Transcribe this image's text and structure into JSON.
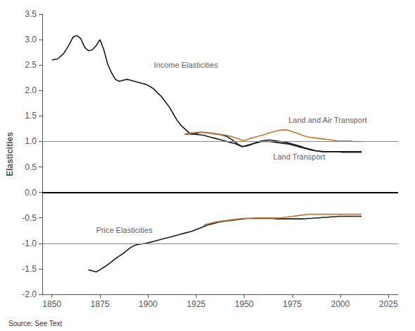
{
  "chart_data": {
    "type": "line",
    "ylabel": "Elasticities",
    "source": "Source: See Text",
    "xlim": [
      1845,
      2030
    ],
    "xticks": [
      1850,
      1875,
      1900,
      1925,
      1950,
      1975,
      2000,
      2025
    ],
    "ylim": [
      -2.0,
      3.5
    ],
    "yticks": [
      {
        "value": -2.0,
        "label": "-2.0"
      },
      -1.5,
      {
        "value": -1.0,
        "label": "-1.0"
      },
      -0.5,
      {
        "value": 0.0,
        "label": "0.0"
      },
      0.5,
      {
        "value": 1.0,
        "label": "1.0"
      },
      1.5,
      {
        "value": 2.0,
        "label": "2.0"
      },
      2.5,
      {
        "value": 3.0,
        "label": "3.0"
      },
      3.5
    ],
    "grid": false,
    "reference_lines": [
      {
        "y": 0.0,
        "color": "#000000"
      },
      {
        "y": 1.0,
        "color": "#888888"
      },
      {
        "y": -1.0,
        "color": "#888888"
      }
    ],
    "annotations": [
      {
        "text": "Income Elasticities",
        "x": 1903,
        "y": 2.42
      },
      {
        "text": "Land and Air Transport",
        "x": 1973,
        "y": 1.34
      },
      {
        "text": "Land Transport",
        "x": 1965,
        "y": 0.62
      },
      {
        "text": "Price Elasticities",
        "x": 1873,
        "y": -0.82
      }
    ],
    "series": [
      {
        "color": "#1a1a1a",
        "x": [
          1850,
          1853,
          1856,
          1859,
          1861,
          1863,
          1865,
          1867,
          1869,
          1871,
          1873,
          1875,
          1877,
          1879,
          1881,
          1883,
          1885,
          1887,
          1889,
          1891,
          1893,
          1895,
          1897,
          1899,
          1901,
          1903,
          1905,
          1907,
          1909,
          1911,
          1913,
          1915,
          1917,
          1919,
          1921,
          1923,
          1925,
          1927,
          1929,
          1931,
          1933,
          1935,
          1937,
          1939,
          1941,
          1943,
          1945,
          1947,
          1949,
          1951,
          1953,
          1955,
          1957,
          1959,
          1961,
          1963,
          1965,
          1967,
          1969,
          1971,
          1973,
          1975,
          1977,
          1979,
          1981,
          1983,
          1985,
          1987,
          1989,
          1991,
          1993,
          1995,
          1997,
          1999,
          2001,
          2003,
          2005,
          2007,
          2009,
          2011
        ],
        "values": [
          2.6,
          2.62,
          2.72,
          2.9,
          3.05,
          3.08,
          3.02,
          2.85,
          2.78,
          2.8,
          2.88,
          3.0,
          2.8,
          2.52,
          2.35,
          2.22,
          2.18,
          2.2,
          2.22,
          2.2,
          2.18,
          2.16,
          2.14,
          2.12,
          2.08,
          2.03,
          1.95,
          1.88,
          1.78,
          1.68,
          1.55,
          1.42,
          1.32,
          1.25,
          1.18,
          1.14,
          1.16,
          1.18,
          1.18,
          1.17,
          1.16,
          1.15,
          1.14,
          1.12,
          1.1,
          1.05,
          1.0,
          0.94,
          0.9,
          0.91,
          0.93,
          0.96,
          0.99,
          1.01,
          1.02,
          1.03,
          1.02,
          1.01,
          1.0,
          0.99,
          0.97,
          0.95,
          0.93,
          0.91,
          0.88,
          0.86,
          0.84,
          0.82,
          0.81,
          0.8,
          0.8,
          0.8,
          0.8,
          0.8,
          0.8,
          0.8,
          0.8,
          0.8,
          0.8,
          0.8
        ]
      },
      {
        "color": "#c87828",
        "x": [
          1919,
          1921,
          1923,
          1925,
          1927,
          1929,
          1931,
          1933,
          1935,
          1937,
          1939,
          1941,
          1943,
          1945,
          1947,
          1949,
          1951,
          1953,
          1955,
          1957,
          1959,
          1961,
          1963,
          1965,
          1967,
          1969,
          1971,
          1973,
          1975,
          1977,
          1979,
          1981,
          1983,
          1985,
          1987,
          1989,
          1991,
          1993,
          1995,
          1997,
          1999,
          2001,
          2003,
          2005,
          2007,
          2009,
          2011
        ],
        "values": [
          1.14,
          1.16,
          1.17,
          1.18,
          1.18,
          1.18,
          1.17,
          1.16,
          1.15,
          1.14,
          1.13,
          1.12,
          1.1,
          1.08,
          1.05,
          1.02,
          1.03,
          1.06,
          1.08,
          1.1,
          1.12,
          1.14,
          1.17,
          1.19,
          1.21,
          1.22,
          1.23,
          1.22,
          1.19,
          1.17,
          1.14,
          1.11,
          1.09,
          1.08,
          1.07,
          1.06,
          1.05,
          1.04,
          1.03,
          1.02,
          1.01,
          1.01,
          1.01,
          1.01,
          1.0,
          1.0,
          1.0
        ]
      },
      {
        "color": "#1a1a1a",
        "x": [
          1919,
          1921,
          1923,
          1925,
          1927,
          1929,
          1931,
          1933,
          1935,
          1937,
          1939,
          1941,
          1943,
          1945,
          1947,
          1949,
          1951,
          1953,
          1955,
          1957,
          1959,
          1961,
          1963,
          1965,
          1967,
          1969,
          1971,
          1973,
          1975,
          1977,
          1979,
          1981,
          1983,
          1985,
          1987,
          1989,
          1991,
          1993,
          1995,
          1997,
          1999,
          2001,
          2003,
          2005,
          2007,
          2009,
          2011
        ],
        "values": [
          1.14,
          1.15,
          1.15,
          1.14,
          1.13,
          1.12,
          1.1,
          1.08,
          1.06,
          1.04,
          1.02,
          1.0,
          0.98,
          0.96,
          0.93,
          0.9,
          0.92,
          0.94,
          0.96,
          0.98,
          1.0,
          1.0,
          1.0,
          0.99,
          0.98,
          0.97,
          0.96,
          0.95,
          0.93,
          0.91,
          0.89,
          0.87,
          0.85,
          0.83,
          0.82,
          0.81,
          0.8,
          0.8,
          0.8,
          0.8,
          0.8,
          0.79,
          0.79,
          0.79,
          0.79,
          0.79,
          0.79
        ]
      },
      {
        "color": "#1a1a1a",
        "x": [
          1869,
          1871,
          1873,
          1875,
          1877,
          1879,
          1881,
          1883,
          1885,
          1887,
          1889,
          1891,
          1893,
          1895,
          1897,
          1899,
          1901,
          1903,
          1905,
          1907,
          1909,
          1911,
          1913,
          1915,
          1917,
          1919,
          1921,
          1923,
          1925,
          1927,
          1929,
          1931,
          1933,
          1935,
          1937,
          1939,
          1941,
          1943,
          1945,
          1947,
          1949,
          1951,
          1953,
          1955,
          1957,
          1959,
          1961,
          1963,
          1965,
          1967,
          1969,
          1971,
          1973,
          1975,
          1977,
          1979,
          1981,
          1983,
          1985,
          1987,
          1989,
          1991,
          1993,
          1995,
          1997,
          1999,
          2001,
          2003,
          2005,
          2007,
          2009,
          2011
        ],
        "values": [
          -1.52,
          -1.54,
          -1.56,
          -1.52,
          -1.47,
          -1.42,
          -1.36,
          -1.3,
          -1.25,
          -1.2,
          -1.14,
          -1.08,
          -1.04,
          -1.02,
          -1.01,
          -1.0,
          -0.98,
          -0.96,
          -0.94,
          -0.92,
          -0.9,
          -0.88,
          -0.86,
          -0.84,
          -0.82,
          -0.8,
          -0.78,
          -0.76,
          -0.73,
          -0.7,
          -0.67,
          -0.64,
          -0.62,
          -0.6,
          -0.58,
          -0.57,
          -0.56,
          -0.55,
          -0.54,
          -0.53,
          -0.52,
          -0.51,
          -0.51,
          -0.51,
          -0.51,
          -0.51,
          -0.51,
          -0.51,
          -0.51,
          -0.52,
          -0.52,
          -0.52,
          -0.52,
          -0.52,
          -0.52,
          -0.52,
          -0.52,
          -0.51,
          -0.51,
          -0.5,
          -0.5,
          -0.49,
          -0.49,
          -0.48,
          -0.48,
          -0.47,
          -0.47,
          -0.47,
          -0.47,
          -0.47,
          -0.47,
          -0.47
        ]
      },
      {
        "color": "#c87828",
        "x": [
          1929,
          1931,
          1933,
          1935,
          1937,
          1939,
          1941,
          1943,
          1945,
          1947,
          1949,
          1951,
          1953,
          1955,
          1957,
          1959,
          1961,
          1963,
          1965,
          1967,
          1969,
          1971,
          1973,
          1975,
          1977,
          1979,
          1981,
          1983,
          1985,
          1987,
          1989,
          1991,
          1993,
          1995,
          1997,
          1999,
          2001,
          2003,
          2005,
          2007,
          2009,
          2011
        ],
        "values": [
          -0.64,
          -0.62,
          -0.6,
          -0.58,
          -0.57,
          -0.56,
          -0.55,
          -0.54,
          -0.53,
          -0.52,
          -0.51,
          -0.51,
          -0.51,
          -0.5,
          -0.5,
          -0.5,
          -0.5,
          -0.5,
          -0.5,
          -0.5,
          -0.5,
          -0.49,
          -0.48,
          -0.47,
          -0.46,
          -0.45,
          -0.44,
          -0.43,
          -0.43,
          -0.43,
          -0.43,
          -0.43,
          -0.43,
          -0.43,
          -0.43,
          -0.43,
          -0.43,
          -0.43,
          -0.43,
          -0.43,
          -0.43,
          -0.43
        ]
      }
    ]
  }
}
